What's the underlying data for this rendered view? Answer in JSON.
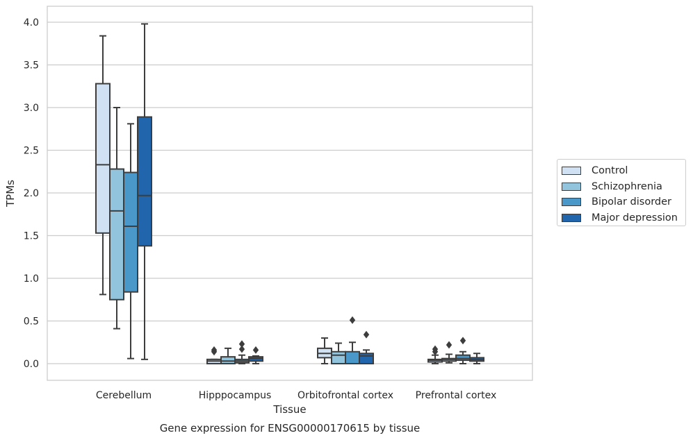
{
  "chart_data": {
    "type": "boxplot",
    "caption": "Gene expression for ENSG00000170615 by tissue",
    "xlabel": "Tissue",
    "ylabel": "TPMs",
    "ylim": [
      -0.19,
      4.19
    ],
    "yticks": [
      "0.0",
      "0.5",
      "1.0",
      "1.5",
      "2.0",
      "2.5",
      "3.0",
      "3.5",
      "4.0"
    ],
    "yticks_values": [
      0.0,
      0.5,
      1.0,
      1.5,
      2.0,
      2.5,
      3.0,
      3.5,
      4.0
    ],
    "grid": true,
    "legend_position": "right",
    "categories": [
      "Cerebellum",
      "Hipppocampus",
      "Orbitofrontal cortex",
      "Prefrontal cortex"
    ],
    "series": [
      {
        "name": "Control",
        "color": "#cfe1f2",
        "boxes": [
          {
            "whislo": 0.81,
            "q1": 1.53,
            "med": 2.33,
            "q3": 3.28,
            "whishi": 3.84,
            "fliers": []
          },
          {
            "whislo": 0.0,
            "q1": 0.0,
            "med": 0.03,
            "q3": 0.05,
            "whishi": 0.05,
            "fliers": [
              0.14,
              0.16
            ]
          },
          {
            "whislo": 0.0,
            "q1": 0.07,
            "med": 0.12,
            "q3": 0.18,
            "whishi": 0.3,
            "fliers": []
          },
          {
            "whislo": 0.0,
            "q1": 0.02,
            "med": 0.04,
            "q3": 0.05,
            "whishi": 0.1,
            "fliers": [
              0.14,
              0.17
            ]
          }
        ]
      },
      {
        "name": "Schizophrenia",
        "color": "#93c4de",
        "boxes": [
          {
            "whislo": 0.41,
            "q1": 0.75,
            "med": 1.79,
            "q3": 2.28,
            "whishi": 3.0,
            "fliers": []
          },
          {
            "whislo": 0.0,
            "q1": 0.0,
            "med": 0.03,
            "q3": 0.08,
            "whishi": 0.18,
            "fliers": []
          },
          {
            "whislo": 0.0,
            "q1": 0.0,
            "med": 0.1,
            "q3": 0.14,
            "whishi": 0.24,
            "fliers": []
          },
          {
            "whislo": 0.01,
            "q1": 0.03,
            "med": 0.05,
            "q3": 0.06,
            "whishi": 0.11,
            "fliers": [
              0.22
            ]
          }
        ]
      },
      {
        "name": "Bipolar disorder",
        "color": "#4a98c9",
        "boxes": [
          {
            "whislo": 0.06,
            "q1": 0.84,
            "med": 1.61,
            "q3": 2.24,
            "whishi": 2.81,
            "fliers": []
          },
          {
            "whislo": 0.0,
            "q1": 0.01,
            "med": 0.03,
            "q3": 0.05,
            "whishi": 0.1,
            "fliers": [
              0.17,
              0.23
            ]
          },
          {
            "whislo": 0.0,
            "q1": 0.0,
            "med": 0.0,
            "q3": 0.14,
            "whishi": 0.25,
            "fliers": [
              0.51
            ]
          },
          {
            "whislo": 0.0,
            "q1": 0.04,
            "med": 0.06,
            "q3": 0.1,
            "whishi": 0.14,
            "fliers": [
              0.27
            ]
          }
        ]
      },
      {
        "name": "Major depression",
        "color": "#2166ac",
        "boxes": [
          {
            "whislo": 0.05,
            "q1": 1.38,
            "med": 1.97,
            "q3": 2.89,
            "whishi": 3.98,
            "fliers": []
          },
          {
            "whislo": 0.0,
            "q1": 0.03,
            "med": 0.06,
            "q3": 0.08,
            "whishi": 0.09,
            "fliers": [
              0.16
            ]
          },
          {
            "whislo": 0.0,
            "q1": 0.0,
            "med": 0.09,
            "q3": 0.12,
            "whishi": 0.16,
            "fliers": [
              0.34
            ]
          },
          {
            "whislo": 0.0,
            "q1": 0.03,
            "med": 0.05,
            "q3": 0.07,
            "whishi": 0.12,
            "fliers": []
          }
        ]
      }
    ]
  }
}
